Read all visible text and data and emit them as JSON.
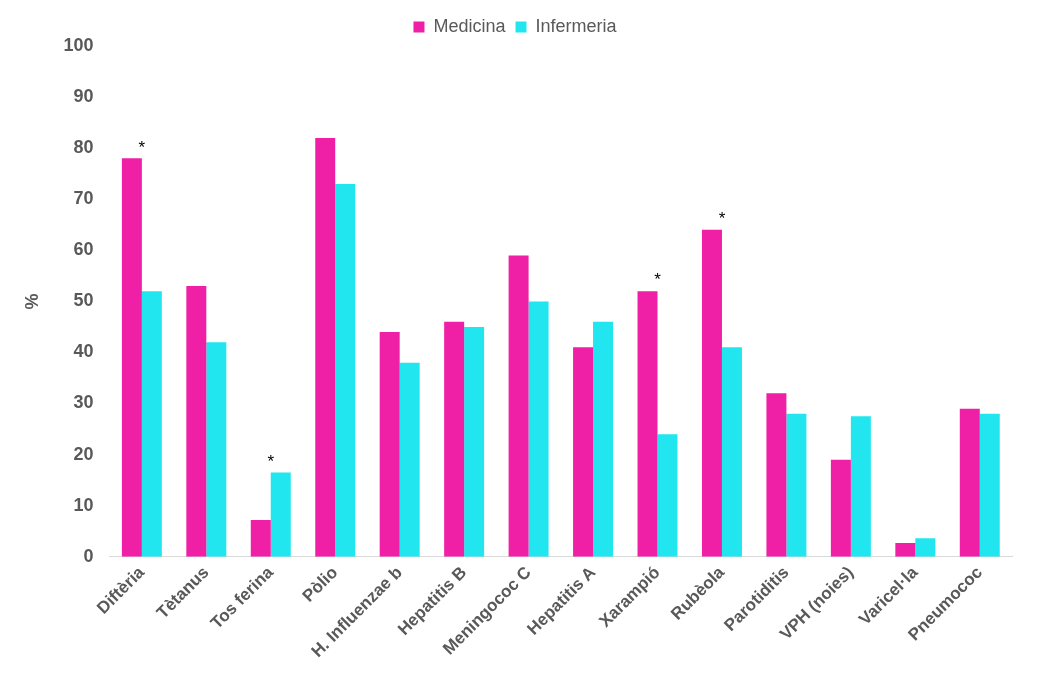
{
  "chart_data": {
    "type": "bar",
    "ylabel": "%",
    "categories": [
      "Diftèria",
      "Tètanus",
      "Tos ferina",
      "Pòlio",
      "H. Influenzae b",
      "Hepatitis B",
      "Meningococ C",
      "Hepatitis A",
      "Xarampió",
      "Rubèola",
      "Parotiditis",
      "VPH (noies)",
      "Varicel·la",
      "Pneumococ"
    ],
    "series": [
      {
        "name": "Medicina",
        "color": "#ef1fa6",
        "values": [
          78,
          53,
          7.2,
          82,
          44,
          46,
          59,
          41,
          52,
          64,
          32,
          19,
          2.7,
          29
        ]
      },
      {
        "name": "Infermeria",
        "color": "#21e6ef",
        "values": [
          52,
          42,
          16.5,
          73,
          38,
          45,
          50,
          46,
          24,
          41,
          28,
          27.5,
          3.6,
          28
        ]
      }
    ],
    "ylim": [
      0,
      100
    ],
    "yticks": [
      0,
      10,
      20,
      30,
      40,
      50,
      60,
      70,
      80,
      90,
      100
    ],
    "grid": false,
    "legend": "top",
    "annotations": [
      {
        "text": "*",
        "x": "Diftèria",
        "y": 78
      },
      {
        "text": "*",
        "x": "Tos ferina",
        "y": 16.5
      },
      {
        "text": "*",
        "x": "Xarampió",
        "y": 52
      },
      {
        "text": "*",
        "x": "Rubèola",
        "y": 64
      }
    ]
  }
}
